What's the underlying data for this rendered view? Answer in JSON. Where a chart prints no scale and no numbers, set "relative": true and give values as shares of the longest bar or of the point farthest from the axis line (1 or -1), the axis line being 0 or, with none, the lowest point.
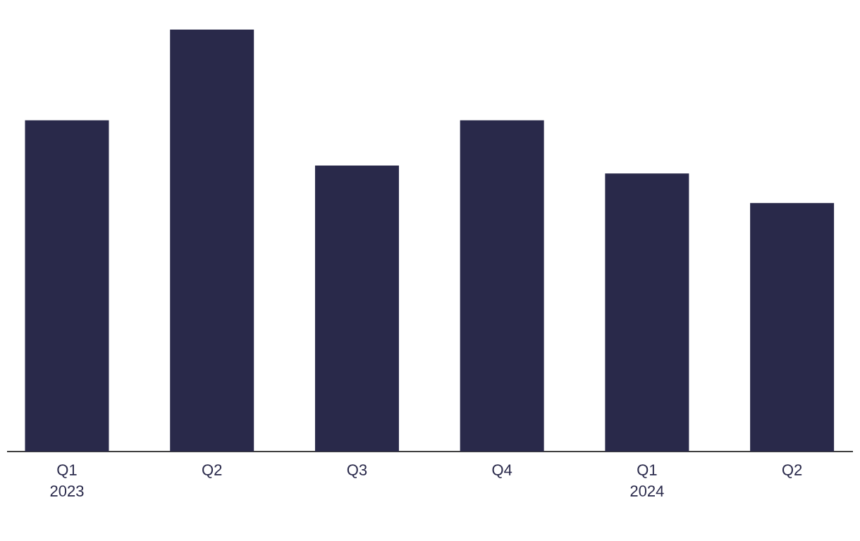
{
  "chart_data": {
    "type": "bar",
    "relative": true,
    "color": "#29294a",
    "categories": [
      "Q1 2023",
      "Q2",
      "Q3",
      "Q4",
      "Q1 2024",
      "Q2"
    ],
    "values": [
      0.785,
      1,
      0.678,
      0.785,
      0.659,
      0.589
    ]
  }
}
